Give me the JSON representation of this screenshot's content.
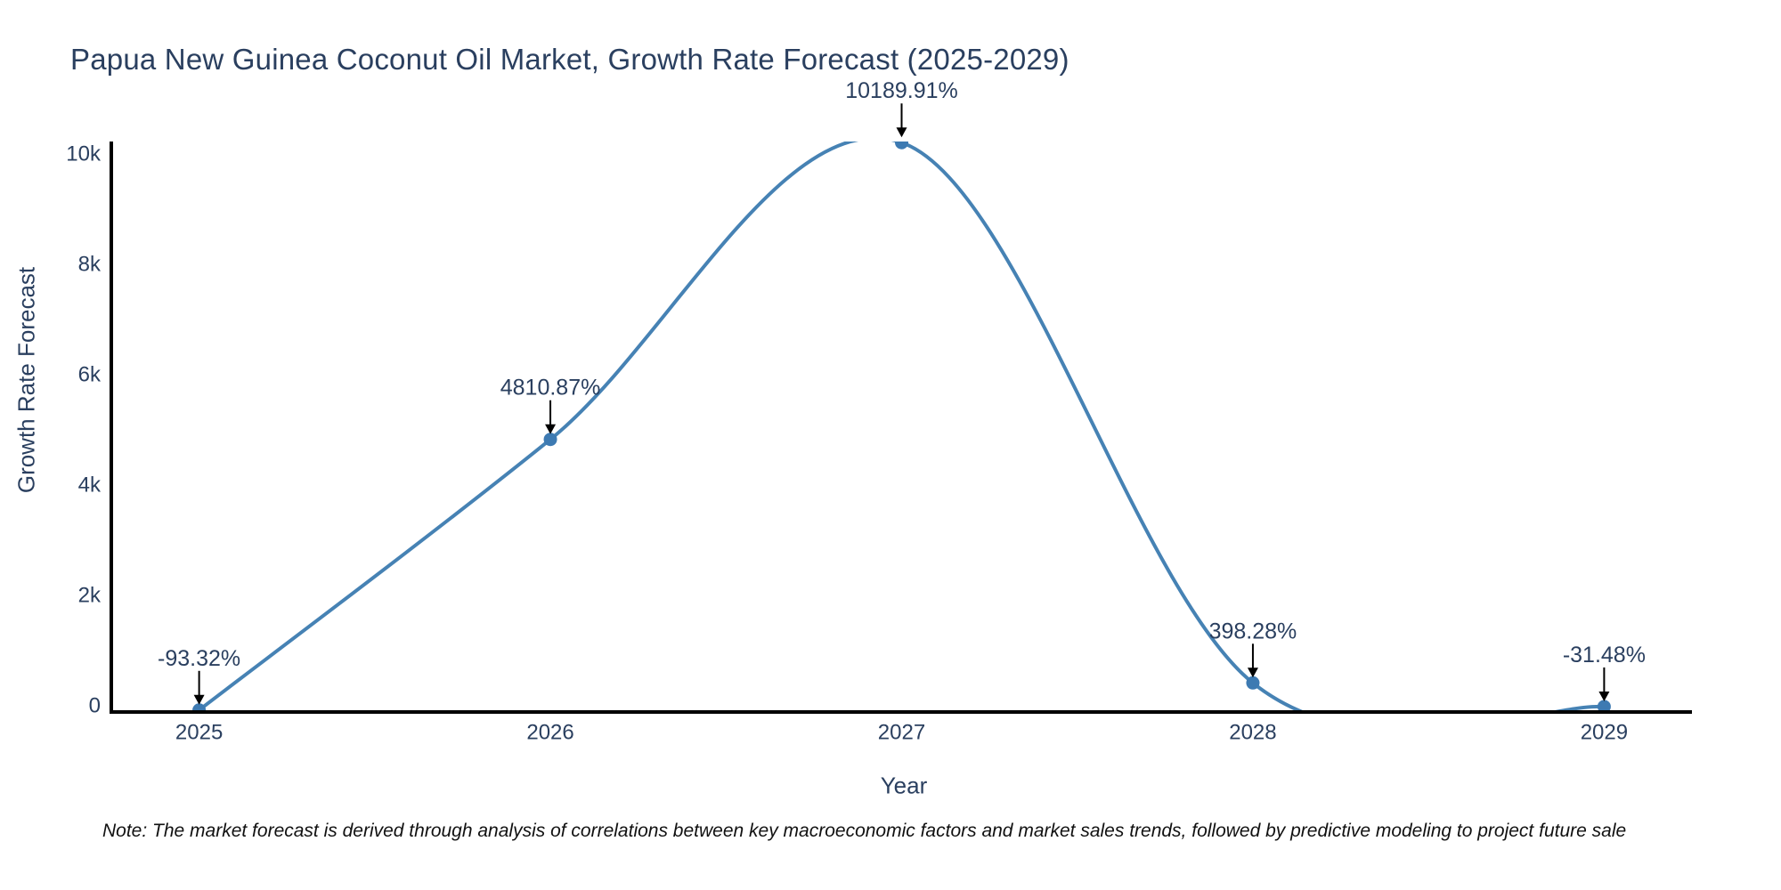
{
  "title": "Papua New Guinea Coconut Oil Market, Growth Rate Forecast (2025-2029)",
  "note": "Note: The market forecast is derived through analysis of correlations between key macroeconomic factors and market sales trends, followed by predictive modeling to project future sale",
  "chart_data": {
    "type": "line",
    "title": "Papua New Guinea Coconut Oil Market, Growth Rate Forecast (2025-2029)",
    "xlabel": "Year",
    "ylabel": "Growth Rate Forecast",
    "x": [
      2025,
      2026,
      2027,
      2028,
      2029
    ],
    "series": [
      {
        "name": "Growth Rate Forecast",
        "values": [
          -93.32,
          4810.87,
          10189.91,
          398.28,
          -31.48
        ]
      }
    ],
    "point_labels": [
      "-93.32%",
      "4810.87%",
      "10189.91%",
      "398.28%",
      "-31.48%"
    ],
    "xtick_labels": [
      "2025",
      "2026",
      "2027",
      "2028",
      "2029"
    ],
    "ytick_values": [
      0,
      2000,
      4000,
      6000,
      8000,
      10000
    ],
    "ytick_labels": [
      "0",
      "2k",
      "4k",
      "6k",
      "8k",
      "10k"
    ],
    "xlim": [
      2024.75,
      2029.25
    ],
    "ylim": [
      -129,
      10210
    ],
    "line_shape": "spline",
    "grid": false,
    "legend": "none",
    "colors": {
      "line": "#4682b4",
      "marker": "#3d7ab2",
      "axis": "#000000",
      "arrow": "#000000",
      "text": "#2a3f5f",
      "background": "#ffffff"
    }
  }
}
